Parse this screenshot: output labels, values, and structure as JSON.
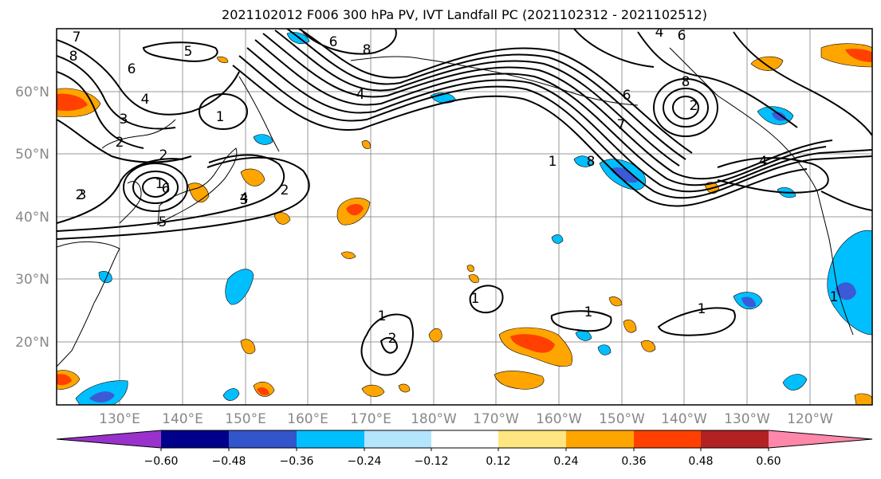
{
  "title": "2021102012 F006 300 hPa PV, IVT Landfall PC (2021102312 - 2021102512)",
  "map": {
    "lat_labels": [
      "60°N",
      "50°N",
      "40°N",
      "30°N",
      "20°N"
    ],
    "lon_labels": [
      "130°E",
      "140°E",
      "150°E",
      "160°E",
      "170°E",
      "180°W",
      "170°W",
      "160°W",
      "150°W",
      "140°W",
      "130°W",
      "120°W"
    ],
    "contour_labels": [
      "7",
      "8",
      "6",
      "4",
      "3",
      "2",
      "1",
      "2",
      "5",
      "6",
      "8",
      "4",
      "3",
      "5",
      "4",
      "6",
      "8",
      "2",
      "6",
      "7",
      "8",
      "4",
      "1",
      "2",
      "6",
      "4",
      "1",
      "3",
      "4",
      "2",
      "1",
      "2",
      "1",
      "1",
      "1",
      "1"
    ],
    "colors": {
      "neg_strong": "#3b5bd6",
      "neg_mid": "#00bfff",
      "neg_weak": "#b3e5fc",
      "pos_weak": "#ffe680",
      "pos_mid": "#ffa500",
      "pos_strong": "#ff4000"
    }
  },
  "colorbar": {
    "tick_labels": [
      "−0.60",
      "−0.48",
      "−0.36",
      "−0.24",
      "−0.12",
      "0.12",
      "0.24",
      "0.36",
      "0.48",
      "0.60"
    ],
    "bin_colors": [
      "#9932cc",
      "#00008b",
      "#3355cc",
      "#00bfff",
      "#b3e5fc",
      "#ffffff",
      "#ffe680",
      "#ffa500",
      "#ff4000",
      "#b22222",
      "#ff88aa"
    ]
  }
}
